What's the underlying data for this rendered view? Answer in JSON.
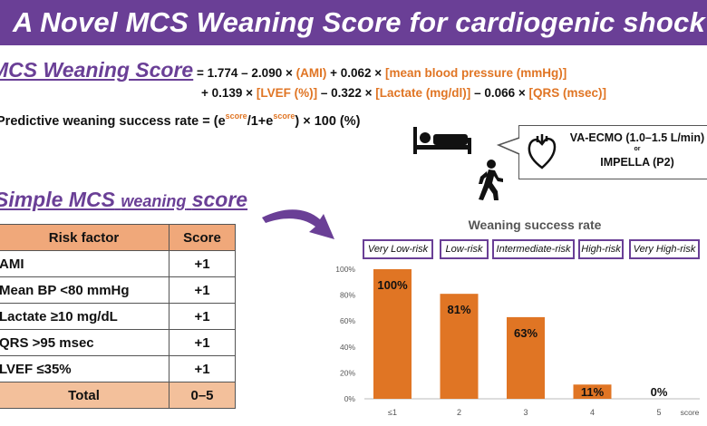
{
  "banner": {
    "title": "A Novel MCS Weaning Score for cardiogenic shock"
  },
  "formula": {
    "name": "MCS Weaning Score",
    "eq": "= 1.774 – 2.090 ×",
    "t_ami": "(AMI)",
    "plus1": "+ 0.062 ×",
    "t_mbp": "[mean blood pressure (mmHg)]",
    "plus2": "+ 0.139 ×",
    "t_lvef": "[LVEF (%)]",
    "minus1": "– 0.322 ×",
    "t_lactate": "[Lactate (mg/dl)]",
    "minus2": "– 0.066 ×",
    "t_qrs": "[QRS (msec)]"
  },
  "predictive": {
    "prefix": "Predictive weaning success rate = (e",
    "sup1": "score",
    "mid": "/1+e",
    "sup2": "score",
    "suffix": ") × 100 (%)"
  },
  "device": {
    "line1": "VA-ECMO (1.0–1.5 L/min)",
    "or": "or",
    "line2": "IMPELLA (P2)"
  },
  "simple": {
    "title_main": "Simple MCS",
    "title_small": "weaning",
    "title_end": "score"
  },
  "table": {
    "header": [
      "Risk factor",
      "Score"
    ],
    "rows": [
      [
        "AMI",
        "+1"
      ],
      [
        "Mean BP <80 mmHg",
        "+1"
      ],
      [
        "Lactate ≥10 mg/dL",
        "+1"
      ],
      [
        "QRS >95 msec",
        "+1"
      ],
      [
        "LVEF ≤35%",
        "+1"
      ]
    ],
    "total": [
      "Total",
      "0–5"
    ]
  },
  "colors": {
    "purple": "#6a3f96",
    "orange": "#e07524",
    "header_fill": "#f0a87a",
    "total_fill": "#f3c09b"
  },
  "icons": [
    "hospital-bed-icon",
    "walking-person-icon",
    "heart-icon",
    "curved-arrow-icon"
  ],
  "risk_labels": [
    "Very Low-risk",
    "Low-risk",
    "Intermediate-risk",
    "High-risk",
    "Very High-risk"
  ],
  "chart_data": {
    "type": "bar",
    "title": "Weaning success rate",
    "categories": [
      "≤1",
      "2",
      "3",
      "4",
      "5"
    ],
    "values": [
      100,
      81,
      63,
      11,
      0
    ],
    "value_labels": [
      "100%",
      "81%",
      "63%",
      "11%",
      "0%"
    ],
    "ylim": [
      0,
      100
    ],
    "yticks": [
      "0%",
      "20%",
      "40%",
      "60%",
      "80%",
      "100%"
    ],
    "xlabel": "score",
    "color": "#e07524"
  }
}
